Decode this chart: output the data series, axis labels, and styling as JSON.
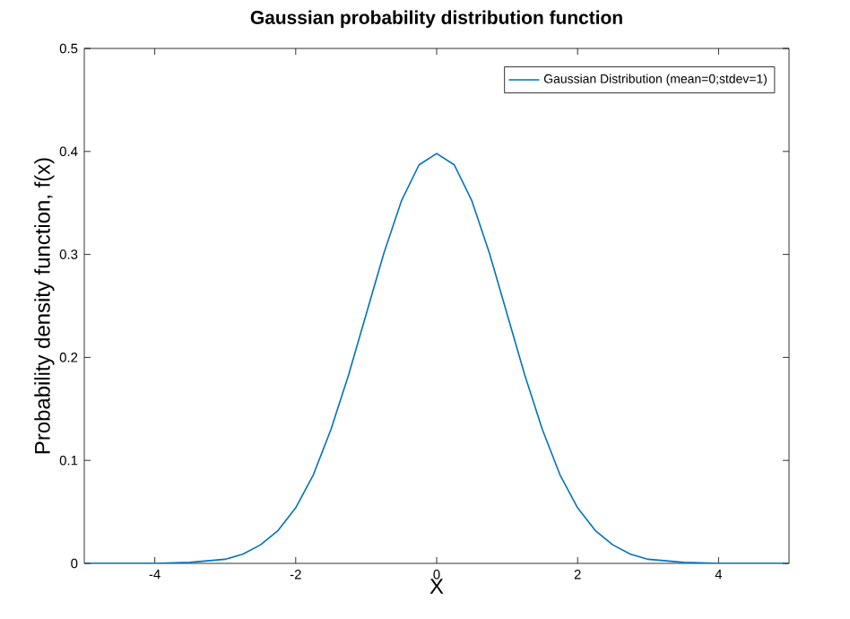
{
  "chart_data": {
    "type": "line",
    "title": "Gaussian probability distribution function",
    "xlabel": "X",
    "ylabel": "Probability density function, f(x)",
    "x": [
      -5,
      -4.5,
      -4,
      -3.5,
      -3,
      -2.75,
      -2.5,
      -2.25,
      -2,
      -1.75,
      -1.5,
      -1.25,
      -1,
      -0.75,
      -0.5,
      -0.25,
      0,
      0.25,
      0.5,
      0.75,
      1,
      1.25,
      1.5,
      1.75,
      2,
      2.25,
      2.5,
      2.75,
      3,
      3.5,
      4,
      4.5,
      5
    ],
    "series": [
      {
        "name": "Gaussian Distribution (mean=0;stdev=1)",
        "color": "#0072bd",
        "values": [
          0.0,
          0.0,
          0.0,
          0.001,
          0.004,
          0.009,
          0.018,
          0.032,
          0.054,
          0.086,
          0.13,
          0.183,
          0.242,
          0.301,
          0.352,
          0.387,
          0.398,
          0.387,
          0.352,
          0.301,
          0.242,
          0.183,
          0.13,
          0.086,
          0.054,
          0.032,
          0.018,
          0.009,
          0.004,
          0.001,
          0.0,
          0.0,
          0.0
        ]
      }
    ],
    "xlim": [
      -5,
      5
    ],
    "ylim": [
      0,
      0.5
    ],
    "xticks": [
      -4,
      -2,
      0,
      2,
      4
    ],
    "yticks": [
      0,
      0.1,
      0.2,
      0.3,
      0.4,
      0.5
    ],
    "legend": "top right",
    "grid": false,
    "marker": "none",
    "line_style": "solid"
  }
}
